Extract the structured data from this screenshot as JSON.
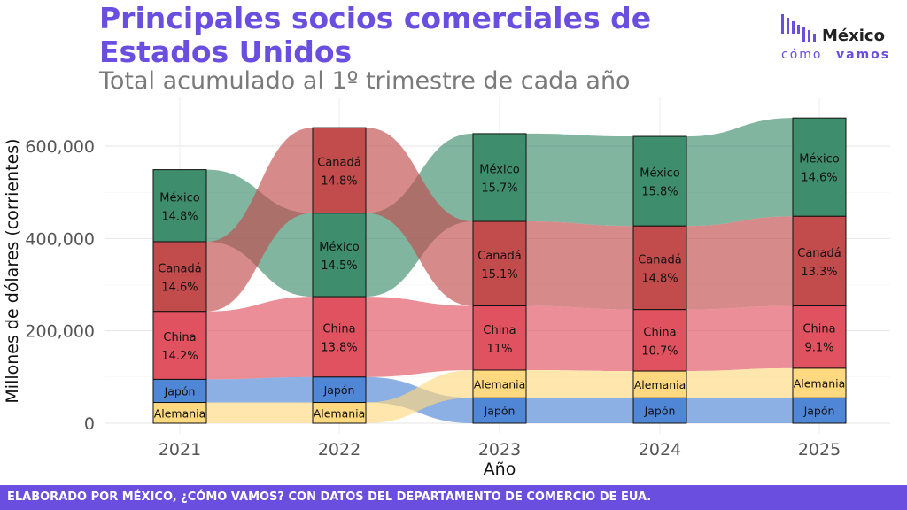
{
  "title": "Principales socios comerciales de Estados Unidos",
  "subtitle": "Total acumulado al 1º trimestre de cada año",
  "logo": {
    "line1": "México",
    "line2a": "cómo",
    "line2b": "vamos"
  },
  "footer": "ELABORADO POR MÉXICO, ¿CÓMO VAMOS? CON DATOS DEL DEPARTAMENTO DE COMERCIO DE EUA.",
  "colors": {
    "México": "#3e8e6d",
    "Canadá": "#c24b4b",
    "China": "#e0525f",
    "Japón": "#4f86d6",
    "Alemania": "#ffd97f"
  },
  "chart_data": {
    "type": "bar",
    "subtype": "stacked-alluvial",
    "xlabel": "Año",
    "ylabel": "Millones de dólares (corrientes)",
    "ylim": [
      0,
      680000
    ],
    "yticks": [
      "0",
      "200,000",
      "400,000",
      "600,000"
    ],
    "ytick_values": [
      0,
      200000,
      400000,
      600000
    ],
    "grid": true,
    "categories": [
      "2021",
      "2022",
      "2023",
      "2024",
      "2025"
    ],
    "series": [
      {
        "name": "México",
        "values": [
          156000,
          181000,
          190000,
          194000,
          213000
        ],
        "labels": [
          "14.8%",
          "14.5%",
          "15.7%",
          "15.8%",
          "14.6%"
        ]
      },
      {
        "name": "Canadá",
        "values": [
          151000,
          185000,
          183000,
          181000,
          194000
        ],
        "labels": [
          "14.6%",
          "14.8%",
          "15.1%",
          "14.8%",
          "13.3%"
        ]
      },
      {
        "name": "China",
        "values": [
          147000,
          174000,
          139000,
          133000,
          135000
        ],
        "labels": [
          "14.2%",
          "13.8%",
          "11%",
          "10.7%",
          "9.1%"
        ]
      },
      {
        "name": "Japón",
        "values": [
          50000,
          55000,
          55000,
          55000,
          55000
        ],
        "labels": [
          "",
          "",
          "",
          "",
          ""
        ]
      },
      {
        "name": "Alemania",
        "values": [
          45000,
          45000,
          60000,
          58000,
          64000
        ],
        "labels": [
          "",
          "",
          "",
          "",
          ""
        ]
      }
    ],
    "stack_order": [
      [
        "Alemania",
        "Japón",
        "China",
        "Canadá",
        "México"
      ],
      [
        "Alemania",
        "Japón",
        "China",
        "México",
        "Canadá"
      ],
      [
        "Japón",
        "Alemania",
        "China",
        "Canadá",
        "México"
      ],
      [
        "Japón",
        "Alemania",
        "China",
        "Canadá",
        "México"
      ],
      [
        "Japón",
        "Alemania",
        "China",
        "Canadá",
        "México"
      ]
    ]
  }
}
